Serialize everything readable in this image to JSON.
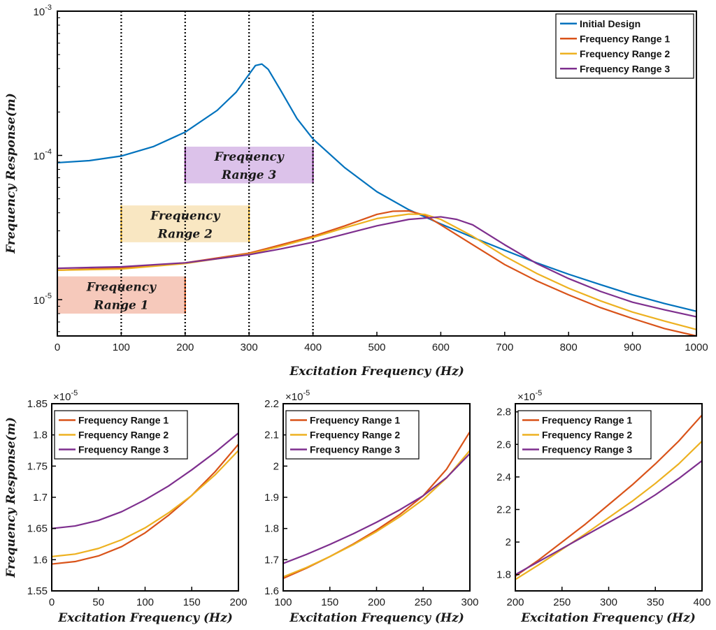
{
  "colors": {
    "initial": "#0072BD",
    "range1": "#D95319",
    "range2": "#EDB120",
    "range3": "#7E2F8E",
    "band1": "#F6C9BB",
    "band2": "#F9E7C2",
    "band3": "#DCC2EA"
  },
  "chart_data": [
    {
      "type": "line",
      "yscale": "log",
      "xlabel": "Excitation Frequency (Hz)",
      "ylabel": "Frequency Response(m)",
      "xlim": [
        0,
        1000
      ],
      "ylim": [
        5.6e-06,
        0.001
      ],
      "x_ticks": [
        "0",
        "100",
        "200",
        "300",
        "400",
        "500",
        "600",
        "700",
        "800",
        "900",
        "1000"
      ],
      "y_ticks": [
        {
          "base": "10",
          "exp": "-5"
        },
        {
          "base": "10",
          "exp": "-4"
        },
        {
          "base": "10",
          "exp": "-3"
        }
      ],
      "legend_position": "top-right",
      "vertical_lines": [
        100,
        200,
        300,
        400
      ],
      "bands": [
        {
          "label_lines": [
            "Frequency",
            "Range 1"
          ],
          "x": [
            0,
            200
          ],
          "y": [
            8e-06,
            1.45e-05
          ],
          "color_key": "band1",
          "edge_key": "range1"
        },
        {
          "label_lines": [
            "Frequency",
            "Range 2"
          ],
          "x": [
            100,
            300
          ],
          "y": [
            2.5e-05,
            4.5e-05
          ],
          "color_key": "band2",
          "edge_key": "range2"
        },
        {
          "label_lines": [
            "Frequency",
            "Range 3"
          ],
          "x": [
            200,
            400
          ],
          "y": [
            6.4e-05,
            0.000115
          ],
          "color_key": "band3",
          "edge_key": "range3"
        }
      ],
      "series": [
        {
          "name": "Initial Design",
          "color_key": "initial",
          "x": [
            0,
            50,
            100,
            150,
            200,
            250,
            280,
            300,
            310,
            320,
            330,
            350,
            375,
            400,
            450,
            500,
            550,
            600,
            650,
            700,
            750,
            800,
            850,
            900,
            950,
            1000
          ],
          "y": [
            8.9e-05,
            9.2e-05,
            9.9e-05,
            0.000115,
            0.000145,
            0.000205,
            0.000275,
            0.000365,
            0.00042,
            0.00043,
            0.000395,
            0.00028,
            0.00018,
            0.00013,
            8.2e-05,
            5.6e-05,
            4.2e-05,
            3.35e-05,
            2.7e-05,
            2.2e-05,
            1.8e-05,
            1.5e-05,
            1.27e-05,
            1.08e-05,
            9.4e-06,
            8.3e-06
          ]
        },
        {
          "name": "Frequency Range 1",
          "color_key": "range1",
          "x": [
            0,
            100,
            200,
            300,
            350,
            400,
            450,
            500,
            525,
            550,
            575,
            600,
            650,
            700,
            750,
            800,
            850,
            900,
            950,
            1000
          ],
          "y": [
            1.6e-05,
            1.66e-05,
            1.8e-05,
            2.1e-05,
            2.4e-05,
            2.75e-05,
            3.25e-05,
            3.9e-05,
            4.1e-05,
            4.12e-05,
            3.85e-05,
            3.3e-05,
            2.4e-05,
            1.75e-05,
            1.35e-05,
            1.08e-05,
            8.8e-06,
            7.4e-06,
            6.3e-06,
            5.6e-06
          ]
        },
        {
          "name": "Frequency Range 2",
          "color_key": "range2",
          "x": [
            0,
            100,
            200,
            300,
            350,
            400,
            450,
            500,
            550,
            575,
            600,
            650,
            700,
            750,
            800,
            850,
            900,
            950,
            1000
          ],
          "y": [
            1.6e-05,
            1.63e-05,
            1.78e-05,
            2.07e-05,
            2.35e-05,
            2.7e-05,
            3.15e-05,
            3.65e-05,
            3.92e-05,
            3.9e-05,
            3.6e-05,
            2.75e-05,
            2e-05,
            1.52e-05,
            1.2e-05,
            9.8e-06,
            8.2e-06,
            7.1e-06,
            6.2e-06
          ]
        },
        {
          "name": "Frequency Range 3",
          "color_key": "range3",
          "x": [
            0,
            100,
            200,
            300,
            350,
            400,
            450,
            500,
            550,
            600,
            625,
            650,
            700,
            750,
            800,
            850,
            900,
            950,
            1000
          ],
          "y": [
            1.65e-05,
            1.69e-05,
            1.8e-05,
            2.05e-05,
            2.25e-05,
            2.5e-05,
            2.85e-05,
            3.25e-05,
            3.6e-05,
            3.75e-05,
            3.6e-05,
            3.3e-05,
            2.4e-05,
            1.78e-05,
            1.4e-05,
            1.14e-05,
            9.6e-06,
            8.5e-06,
            7.6e-06
          ]
        }
      ]
    },
    {
      "type": "line",
      "xlabel": "Excitation Frequency (Hz)",
      "ylabel": "Frequency Response(m)",
      "xlim": [
        0,
        200
      ],
      "ylim": [
        1.55,
        1.85
      ],
      "y_scale_label": {
        "base": "×10",
        "exp": "-5"
      },
      "x_ticks": [
        "0",
        "50",
        "100",
        "150",
        "200"
      ],
      "y_ticks": [
        "1.55",
        "1.6",
        "1.65",
        "1.7",
        "1.75",
        "1.8",
        "1.85"
      ],
      "legend_position": "top-left",
      "series": [
        {
          "name": "Frequency Range 1",
          "color_key": "range1",
          "x": [
            0,
            25,
            50,
            75,
            100,
            125,
            150,
            175,
            200
          ],
          "y": [
            1.593,
            1.597,
            1.606,
            1.621,
            1.643,
            1.671,
            1.703,
            1.741,
            1.785
          ]
        },
        {
          "name": "Frequency Range 2",
          "color_key": "range2",
          "x": [
            0,
            25,
            50,
            75,
            100,
            125,
            150,
            175,
            200
          ],
          "y": [
            1.605,
            1.609,
            1.618,
            1.632,
            1.651,
            1.675,
            1.703,
            1.736,
            1.775
          ]
        },
        {
          "name": "Frequency Range 3",
          "color_key": "range3",
          "x": [
            0,
            25,
            50,
            75,
            100,
            125,
            150,
            175,
            200
          ],
          "y": [
            1.65,
            1.654,
            1.663,
            1.677,
            1.696,
            1.718,
            1.744,
            1.772,
            1.803
          ]
        }
      ]
    },
    {
      "type": "line",
      "xlabel": "Excitation Frequency (Hz)",
      "xlim": [
        100,
        300
      ],
      "ylim": [
        1.6,
        2.2
      ],
      "y_scale_label": {
        "base": "×10",
        "exp": "-5"
      },
      "x_ticks": [
        "100",
        "150",
        "200",
        "250",
        "300"
      ],
      "y_ticks": [
        "1.6",
        "1.7",
        "1.8",
        "1.9",
        "2",
        "2.1",
        "2.2"
      ],
      "legend_position": "top-left",
      "series": [
        {
          "name": "Frequency Range 1",
          "color_key": "range1",
          "x": [
            100,
            125,
            150,
            175,
            200,
            225,
            250,
            275,
            300
          ],
          "y": [
            1.64,
            1.673,
            1.71,
            1.75,
            1.795,
            1.845,
            1.905,
            1.99,
            2.11
          ]
        },
        {
          "name": "Frequency Range 2",
          "color_key": "range2",
          "x": [
            100,
            125,
            150,
            175,
            200,
            225,
            250,
            275,
            300
          ],
          "y": [
            1.645,
            1.675,
            1.71,
            1.748,
            1.79,
            1.838,
            1.893,
            1.962,
            2.05
          ]
        },
        {
          "name": "Frequency Range 3",
          "color_key": "range3",
          "x": [
            100,
            125,
            150,
            175,
            200,
            225,
            250,
            275,
            300
          ],
          "y": [
            1.688,
            1.717,
            1.749,
            1.783,
            1.82,
            1.86,
            1.905,
            1.963,
            2.04
          ]
        }
      ]
    },
    {
      "type": "line",
      "xlabel": "Excitation Frequency (Hz)",
      "xlim": [
        200,
        400
      ],
      "ylim": [
        1.7,
        2.85
      ],
      "y_scale_label": {
        "base": "×10",
        "exp": "-5"
      },
      "x_ticks": [
        "200",
        "250",
        "300",
        "350",
        "400"
      ],
      "y_ticks": [
        "1.8",
        "2",
        "2.2",
        "2.4",
        "2.6",
        "2.8"
      ],
      "legend_position": "top-left",
      "series": [
        {
          "name": "Frequency Range 1",
          "color_key": "range1",
          "x": [
            200,
            225,
            250,
            275,
            300,
            325,
            350,
            375,
            400
          ],
          "y": [
            1.79,
            1.89,
            2.0,
            2.11,
            2.23,
            2.35,
            2.48,
            2.62,
            2.78
          ]
        },
        {
          "name": "Frequency Range 2",
          "color_key": "range2",
          "x": [
            200,
            225,
            250,
            275,
            300,
            325,
            350,
            375,
            400
          ],
          "y": [
            1.77,
            1.86,
            1.955,
            2.05,
            2.15,
            2.25,
            2.36,
            2.48,
            2.62
          ]
        },
        {
          "name": "Frequency Range 3",
          "color_key": "range3",
          "x": [
            200,
            225,
            250,
            275,
            300,
            325,
            350,
            375,
            400
          ],
          "y": [
            1.8,
            1.88,
            1.96,
            2.04,
            2.12,
            2.2,
            2.29,
            2.39,
            2.5
          ]
        }
      ]
    }
  ]
}
